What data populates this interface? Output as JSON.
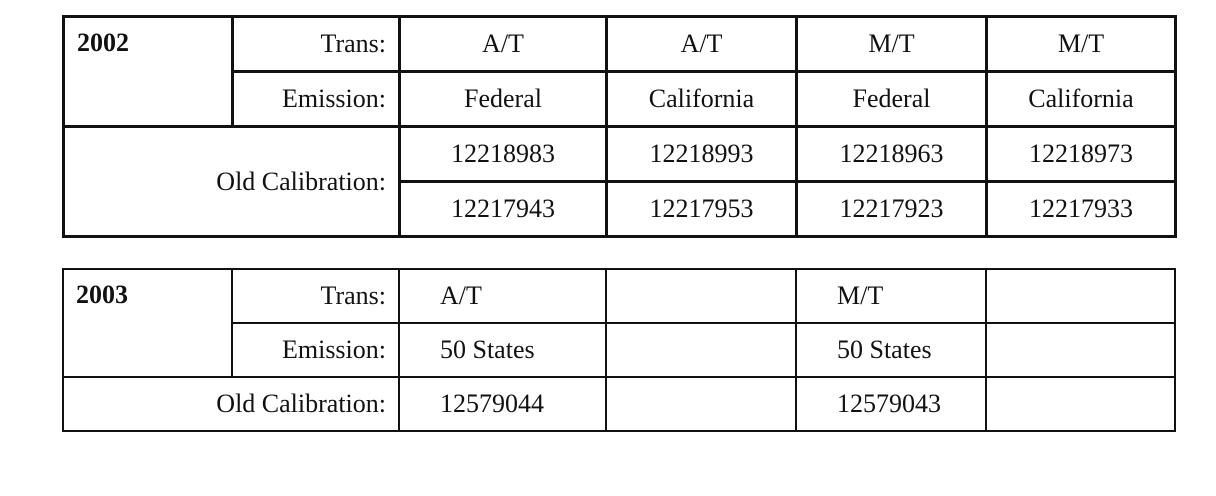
{
  "tables": [
    {
      "year": "2002",
      "trans_label": "Trans:",
      "emission_label": "Emission:",
      "calibration_label": "Old Calibration:",
      "trans": [
        "A/T",
        "A/T",
        "M/T",
        "M/T"
      ],
      "emission": [
        "Federal",
        "California",
        "Federal",
        "California"
      ],
      "calibration_rows": [
        [
          "12218983",
          "12218993",
          "12218963",
          "12218973"
        ],
        [
          "12217943",
          "12217953",
          "12217923",
          "12217933"
        ]
      ]
    },
    {
      "year": "2003",
      "trans_label": "Trans:",
      "emission_label": "Emission:",
      "calibration_label": "Old Calibration:",
      "trans": [
        "A/T",
        "",
        "M/T",
        ""
      ],
      "emission": [
        "50 States",
        "",
        "50 States",
        ""
      ],
      "calibration": [
        "12579044",
        "",
        "12579043",
        ""
      ]
    }
  ]
}
